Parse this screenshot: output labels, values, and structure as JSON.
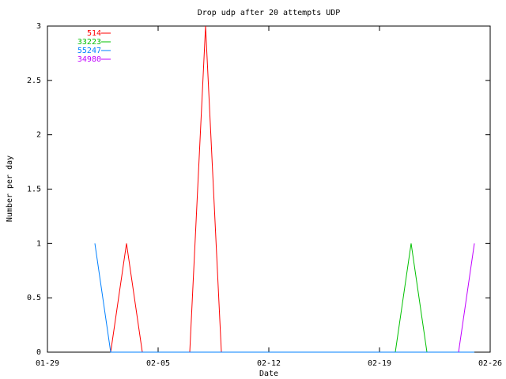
{
  "chart_data": {
    "type": "line",
    "title": "Drop udp after 20 attempts UDP",
    "x_label": "Date",
    "y_label": "Number per day",
    "x": [
      3,
      4,
      5,
      6,
      7,
      8,
      9,
      10,
      11,
      12,
      13,
      14,
      15,
      16,
      17,
      18,
      19,
      20,
      21,
      22,
      23,
      24,
      25,
      26,
      27
    ],
    "xlim": [
      0,
      28
    ],
    "xticks": [
      {
        "value": 0,
        "label": "01-29"
      },
      {
        "value": 7,
        "label": "02-05"
      },
      {
        "value": 14,
        "label": "02-12"
      },
      {
        "value": 21,
        "label": "02-19"
      },
      {
        "value": 28,
        "label": "02-26"
      }
    ],
    "ylim": [
      0,
      3
    ],
    "yticks": [
      0,
      0.5,
      1,
      1.5,
      2,
      2.5,
      3
    ],
    "legend": "top-left",
    "series": [
      {
        "name": "514",
        "color": "#ff0000",
        "values": [
          null,
          0,
          1,
          0,
          0,
          0,
          0,
          3,
          0,
          0,
          0,
          0,
          0,
          0,
          0,
          0,
          0,
          0,
          0,
          0,
          0,
          0,
          0,
          0,
          0
        ]
      },
      {
        "name": "33223",
        "color": "#00c000",
        "values": [
          null,
          null,
          null,
          null,
          null,
          null,
          null,
          null,
          null,
          null,
          null,
          null,
          null,
          null,
          null,
          null,
          null,
          null,
          null,
          0,
          1,
          0,
          0,
          0,
          0
        ]
      },
      {
        "name": "55247",
        "color": "#0080ff",
        "values": [
          1,
          0,
          0,
          0,
          0,
          0,
          0,
          0,
          0,
          0,
          0,
          0,
          0,
          0,
          0,
          0,
          0,
          0,
          0,
          0,
          0,
          0,
          0,
          0,
          0
        ]
      },
      {
        "name": "34980",
        "color": "#c000ff",
        "values": [
          null,
          null,
          null,
          null,
          null,
          null,
          null,
          null,
          null,
          null,
          null,
          null,
          null,
          null,
          null,
          null,
          null,
          null,
          null,
          null,
          null,
          null,
          null,
          0,
          1
        ]
      }
    ]
  }
}
